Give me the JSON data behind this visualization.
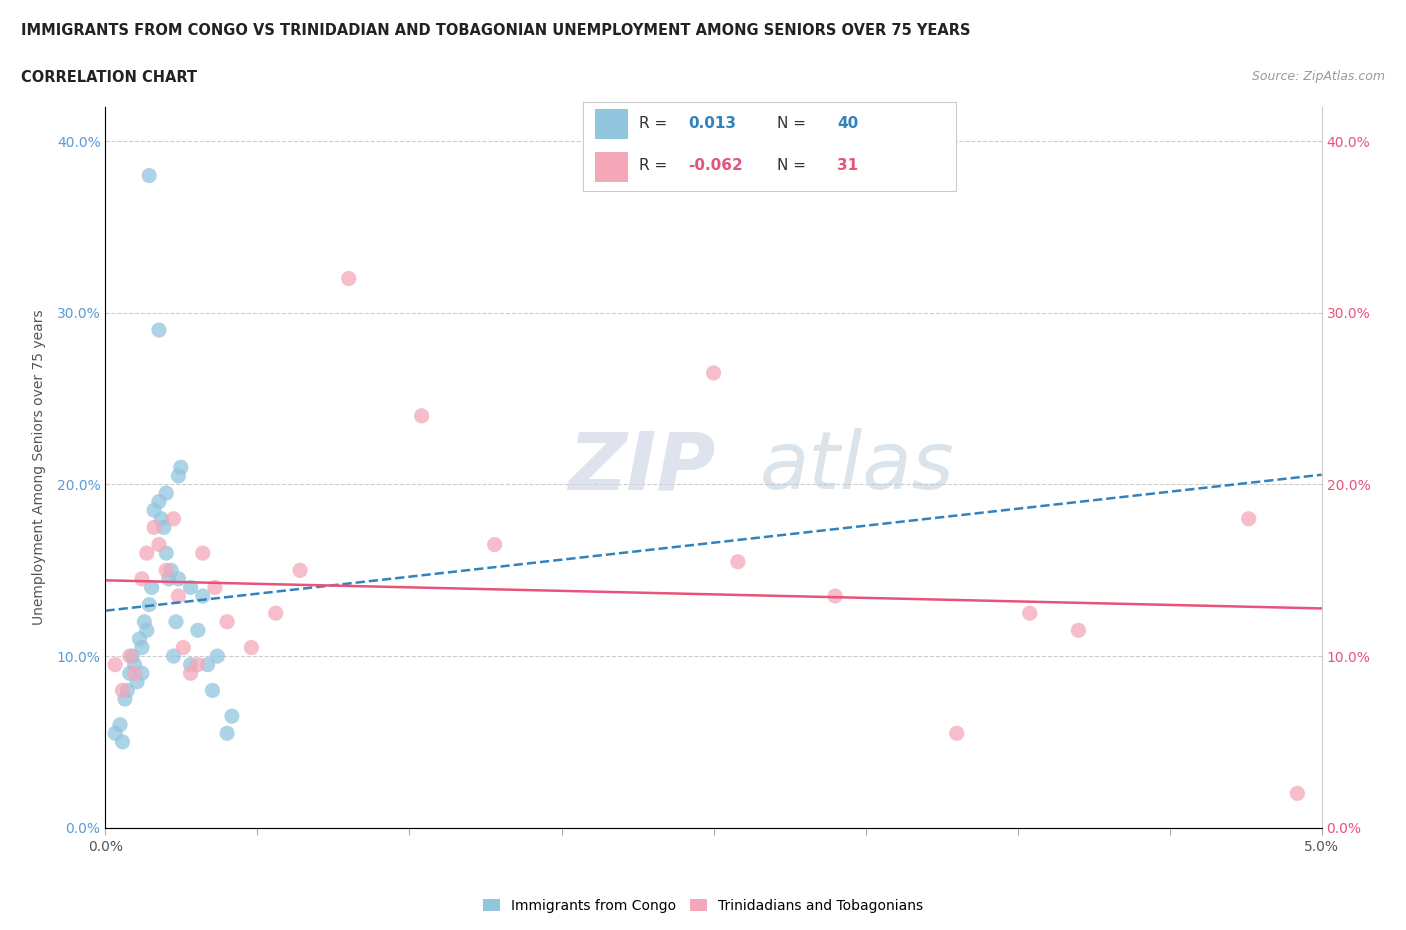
{
  "title_line1": "IMMIGRANTS FROM CONGO VS TRINIDADIAN AND TOBAGONIAN UNEMPLOYMENT AMONG SENIORS OVER 75 YEARS",
  "title_line2": "CORRELATION CHART",
  "source": "Source: ZipAtlas.com",
  "ylabel": "Unemployment Among Seniors over 75 years",
  "watermark_zip": "ZIP",
  "watermark_atlas": "atlas",
  "legend_label1": "Immigrants from Congo",
  "legend_label2": "Trinidadians and Tobagonians",
  "r1": 0.013,
  "n1": 40,
  "r2": -0.062,
  "n2": 31,
  "color_congo": "#92c5de",
  "color_trini": "#f4a7b9",
  "color_congo_line": "#3182bd",
  "color_trini_line": "#e8537a",
  "color_left_tick": "#5b9bd5",
  "color_right_tick": "#e8537a",
  "xlim": [
    0.0,
    5.0
  ],
  "ylim": [
    0.0,
    42.0
  ],
  "yticks": [
    0.0,
    10.0,
    20.0,
    30.0,
    40.0
  ],
  "xtick_positions": [
    0.0,
    0.625,
    1.25,
    1.875,
    2.5,
    3.125,
    3.75,
    4.375,
    5.0
  ],
  "congo_x": [
    0.04,
    0.06,
    0.07,
    0.08,
    0.09,
    0.1,
    0.11,
    0.12,
    0.13,
    0.14,
    0.15,
    0.16,
    0.17,
    0.18,
    0.19,
    0.2,
    0.22,
    0.23,
    0.24,
    0.25,
    0.26,
    0.27,
    0.28,
    0.29,
    0.3,
    0.31,
    0.35,
    0.38,
    0.4,
    0.42,
    0.44,
    0.46,
    0.5,
    0.52,
    0.18,
    0.22,
    0.25,
    0.3,
    0.35,
    0.15
  ],
  "congo_y": [
    5.5,
    6.0,
    5.0,
    7.5,
    8.0,
    9.0,
    10.0,
    9.5,
    8.5,
    11.0,
    10.5,
    12.0,
    11.5,
    13.0,
    14.0,
    18.5,
    19.0,
    18.0,
    17.5,
    19.5,
    14.5,
    15.0,
    10.0,
    12.0,
    20.5,
    21.0,
    14.0,
    11.5,
    13.5,
    9.5,
    8.0,
    10.0,
    5.5,
    6.5,
    38.0,
    29.0,
    16.0,
    14.5,
    9.5,
    9.0
  ],
  "trini_x": [
    0.04,
    0.07,
    0.1,
    0.12,
    0.15,
    0.17,
    0.2,
    0.22,
    0.25,
    0.28,
    0.3,
    0.32,
    0.35,
    0.38,
    0.4,
    0.45,
    0.5,
    0.6,
    0.7,
    0.8,
    1.0,
    1.3,
    1.6,
    2.5,
    2.6,
    3.0,
    3.5,
    3.8,
    4.0,
    4.7,
    4.9
  ],
  "trini_y": [
    9.5,
    8.0,
    10.0,
    9.0,
    14.5,
    16.0,
    17.5,
    16.5,
    15.0,
    18.0,
    13.5,
    10.5,
    9.0,
    9.5,
    16.0,
    14.0,
    12.0,
    10.5,
    12.5,
    15.0,
    32.0,
    24.0,
    16.5,
    26.5,
    15.5,
    13.5,
    5.5,
    12.5,
    11.5,
    18.0,
    2.0
  ]
}
